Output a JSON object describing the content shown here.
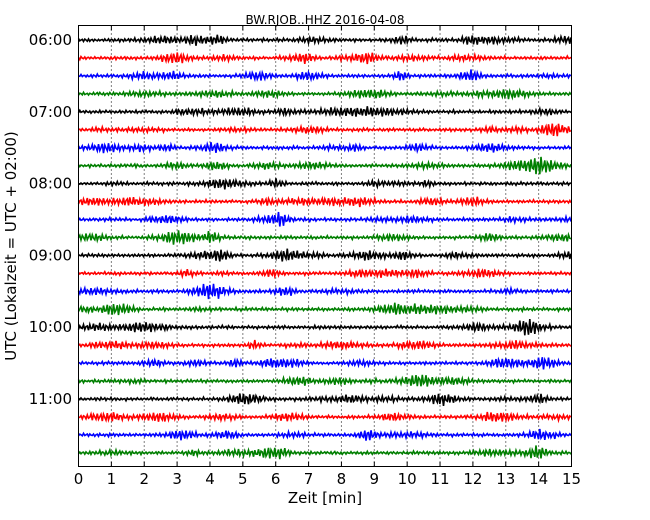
{
  "chart_data": {
    "type": "line",
    "title": "BW.RJOB..HHZ 2016-04-08",
    "xlabel": "Zeit  [min]",
    "ylabel": "UTC (Lokalzeit = UTC + 02:00)",
    "xlim": [
      0,
      15
    ],
    "x_ticks": [
      "0",
      "1",
      "2",
      "3",
      "4",
      "5",
      "6",
      "7",
      "8",
      "9",
      "10",
      "11",
      "12",
      "13",
      "14",
      "15"
    ],
    "y_tick_labels": [
      "06:00",
      "07:00",
      "08:00",
      "09:00",
      "10:00",
      "11:00"
    ],
    "y_tick_trace_index": [
      0,
      4,
      8,
      12,
      16,
      20
    ],
    "trace_start_time": "06:00",
    "trace_interval_minutes": 15,
    "trace_count": 24,
    "color_cycle": [
      "#000000",
      "#ff0000",
      "#0000ff",
      "#007f00"
    ],
    "grid": {
      "x": "dotted",
      "y": false
    },
    "legend": "none"
  }
}
